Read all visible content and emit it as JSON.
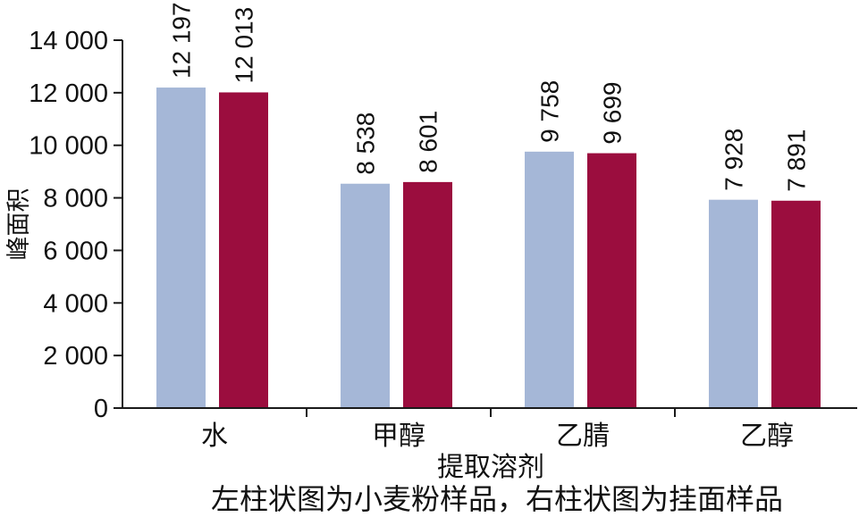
{
  "chart_data": {
    "type": "bar",
    "categories": [
      "水",
      "甲醇",
      "乙腈",
      "乙醇"
    ],
    "series": [
      {
        "values": [
          12197,
          8538,
          9758,
          7928
        ],
        "labels": [
          "12 197",
          "8 538",
          "9 758",
          "7 928"
        ],
        "color": "#a5b7d7"
      },
      {
        "values": [
          12013,
          8601,
          9699,
          7891
        ],
        "labels": [
          "12 013",
          "8 601",
          "9 699",
          "7 891"
        ],
        "color": "#9b0d3e"
      }
    ],
    "xlabel": "提取溶剂",
    "ylabel": "峰面积",
    "ylim": [
      0,
      14000
    ],
    "yticks": [
      0,
      2000,
      4000,
      6000,
      8000,
      10000,
      12000,
      14000
    ],
    "ytick_labels": [
      "0",
      "2 000",
      "4 000",
      "6 000",
      "8 000",
      "10 000",
      "12 000",
      "14 000"
    ],
    "caption": "左柱状图为小麦粉样品，右柱状图为挂面样品",
    "grid": false,
    "legend": "none"
  }
}
